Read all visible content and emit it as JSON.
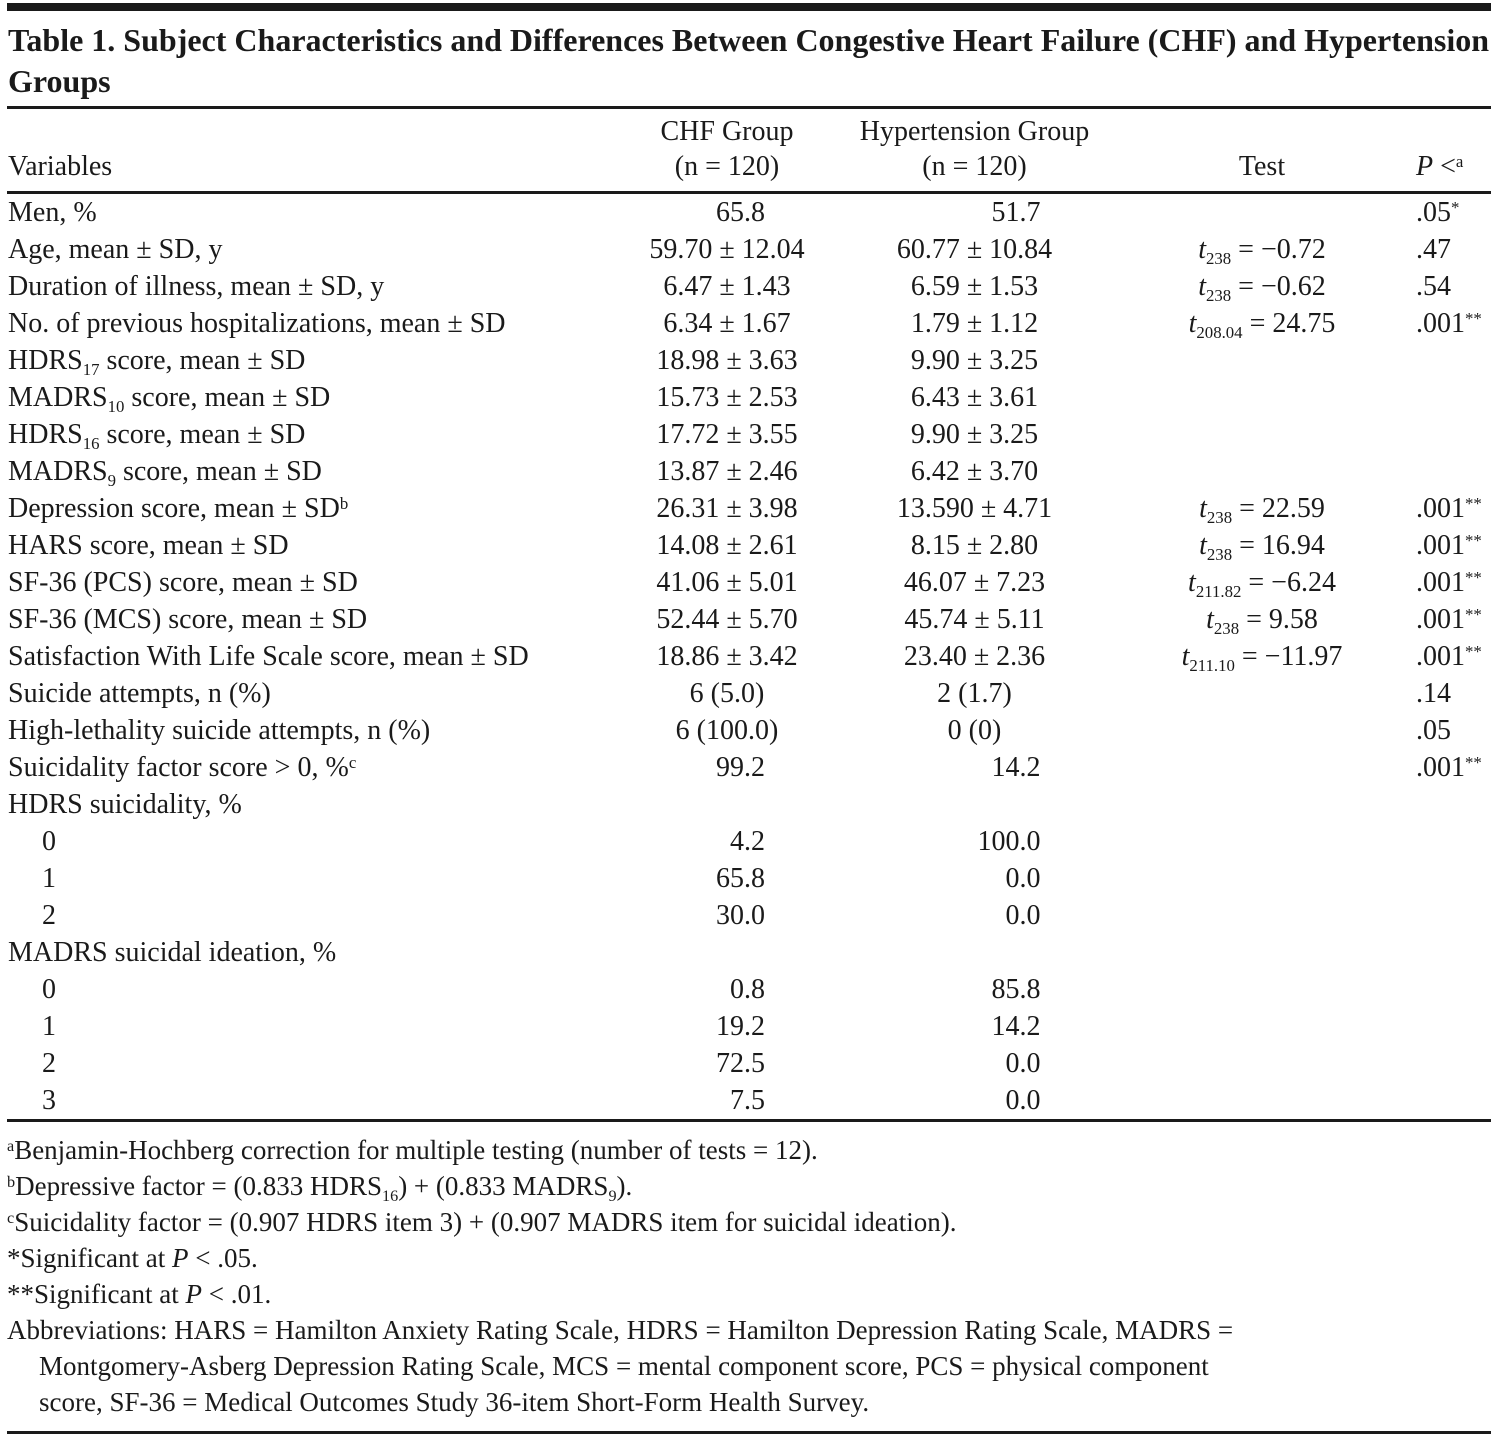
{
  "title": "Table 1. Subject Characteristics and Differences Between Congestive Heart Failure (CHF) and Hypertension Groups",
  "header": {
    "variables": "Variables",
    "chf_line1": "CHF Group",
    "chf_line2": "(n = 120)",
    "hyp_line1": "Hypertension Group",
    "hyp_line2": "(n = 120)",
    "test": "Test",
    "p_italic": "P",
    "p_lt": " <",
    "p_sup": "a"
  },
  "rows": [
    {
      "label": [
        {
          "t": "text",
          "v": "Men, %"
        }
      ],
      "indent": false,
      "chf": "65.8",
      "hyp": "51.7",
      "test": [],
      "p": [
        {
          "t": "text",
          "v": ".05"
        },
        {
          "t": "sup",
          "v": "*"
        }
      ]
    },
    {
      "label": [
        {
          "t": "text",
          "v": "Age, mean ± SD, y"
        }
      ],
      "indent": false,
      "chf": "59.70 ± 12.04",
      "hyp": "60.77 ± 10.84",
      "test": [
        {
          "t": "i",
          "v": "t"
        },
        {
          "t": "sub",
          "v": "238"
        },
        {
          "t": "text",
          "v": " = −0.72"
        }
      ],
      "p": [
        {
          "t": "text",
          "v": ".47"
        }
      ]
    },
    {
      "label": [
        {
          "t": "text",
          "v": "Duration of illness, mean ± SD, y"
        }
      ],
      "indent": false,
      "chf": "6.47 ± 1.43",
      "hyp": "6.59 ± 1.53",
      "test": [
        {
          "t": "i",
          "v": "t"
        },
        {
          "t": "sub",
          "v": "238"
        },
        {
          "t": "text",
          "v": " = −0.62"
        }
      ],
      "p": [
        {
          "t": "text",
          "v": ".54"
        }
      ]
    },
    {
      "label": [
        {
          "t": "text",
          "v": "No. of previous hospitalizations, mean ± SD"
        }
      ],
      "indent": false,
      "chf": "6.34 ± 1.67",
      "hyp": "1.79 ± 1.12",
      "test": [
        {
          "t": "i",
          "v": "t"
        },
        {
          "t": "sub",
          "v": "208.04"
        },
        {
          "t": "text",
          "v": " = 24.75"
        }
      ],
      "p": [
        {
          "t": "text",
          "v": ".001"
        },
        {
          "t": "sup",
          "v": "**"
        }
      ]
    },
    {
      "label": [
        {
          "t": "text",
          "v": "HDRS"
        },
        {
          "t": "sub",
          "v": "17"
        },
        {
          "t": "text",
          "v": " score, mean ± SD"
        }
      ],
      "indent": false,
      "chf": "18.98 ± 3.63",
      "hyp": "9.90 ± 3.25",
      "test": [],
      "p": []
    },
    {
      "label": [
        {
          "t": "text",
          "v": "MADRS"
        },
        {
          "t": "sub",
          "v": "10"
        },
        {
          "t": "text",
          "v": " score, mean ± SD"
        }
      ],
      "indent": false,
      "chf": "15.73 ± 2.53",
      "hyp": "6.43 ± 3.61",
      "test": [],
      "p": []
    },
    {
      "label": [
        {
          "t": "text",
          "v": "HDRS"
        },
        {
          "t": "sub",
          "v": "16"
        },
        {
          "t": "text",
          "v": " score, mean ± SD"
        }
      ],
      "indent": false,
      "chf": "17.72 ± 3.55",
      "hyp": "9.90 ± 3.25",
      "test": [],
      "p": []
    },
    {
      "label": [
        {
          "t": "text",
          "v": "MADRS"
        },
        {
          "t": "sub",
          "v": "9"
        },
        {
          "t": "text",
          "v": " score, mean ± SD"
        }
      ],
      "indent": false,
      "chf": "13.87 ± 2.46",
      "hyp": "6.42 ± 3.70",
      "test": [],
      "p": []
    },
    {
      "label": [
        {
          "t": "text",
          "v": "Depression score, mean ± SD"
        },
        {
          "t": "sup",
          "v": "b"
        }
      ],
      "indent": false,
      "chf": "26.31 ± 3.98",
      "hyp": "13.590 ± 4.71",
      "test": [
        {
          "t": "i",
          "v": "t"
        },
        {
          "t": "sub",
          "v": "238"
        },
        {
          "t": "text",
          "v": " = 22.59"
        }
      ],
      "p": [
        {
          "t": "text",
          "v": ".001"
        },
        {
          "t": "sup",
          "v": "**"
        }
      ]
    },
    {
      "label": [
        {
          "t": "text",
          "v": "HARS score, mean ± SD"
        }
      ],
      "indent": false,
      "chf": "14.08 ± 2.61",
      "hyp": "8.15 ± 2.80",
      "test": [
        {
          "t": "i",
          "v": "t"
        },
        {
          "t": "sub",
          "v": "238"
        },
        {
          "t": "text",
          "v": " = 16.94"
        }
      ],
      "p": [
        {
          "t": "text",
          "v": ".001"
        },
        {
          "t": "sup",
          "v": "**"
        }
      ]
    },
    {
      "label": [
        {
          "t": "text",
          "v": "SF-36 (PCS) score, mean ± SD"
        }
      ],
      "indent": false,
      "chf": "41.06 ± 5.01",
      "hyp": "46.07 ± 7.23",
      "test": [
        {
          "t": "i",
          "v": "t"
        },
        {
          "t": "sub",
          "v": "211.82"
        },
        {
          "t": "text",
          "v": " = −6.24"
        }
      ],
      "p": [
        {
          "t": "text",
          "v": ".001"
        },
        {
          "t": "sup",
          "v": "**"
        }
      ]
    },
    {
      "label": [
        {
          "t": "text",
          "v": "SF-36 (MCS) score, mean ± SD"
        }
      ],
      "indent": false,
      "chf": "52.44 ± 5.70",
      "hyp": "45.74 ± 5.11",
      "test": [
        {
          "t": "i",
          "v": "t"
        },
        {
          "t": "sub",
          "v": "238"
        },
        {
          "t": "text",
          "v": " = 9.58"
        }
      ],
      "p": [
        {
          "t": "text",
          "v": ".001"
        },
        {
          "t": "sup",
          "v": "**"
        }
      ]
    },
    {
      "label": [
        {
          "t": "text",
          "v": "Satisfaction With Life Scale score, mean ± SD"
        }
      ],
      "indent": false,
      "chf": "18.86 ± 3.42",
      "hyp": "23.40 ± 2.36",
      "test": [
        {
          "t": "i",
          "v": "t"
        },
        {
          "t": "sub",
          "v": "211.10"
        },
        {
          "t": "text",
          "v": " = −11.97"
        }
      ],
      "p": [
        {
          "t": "text",
          "v": ".001"
        },
        {
          "t": "sup",
          "v": "**"
        }
      ]
    },
    {
      "label": [
        {
          "t": "text",
          "v": "Suicide attempts, n (%)"
        }
      ],
      "indent": false,
      "chf": "6 (5.0)",
      "hyp": "2 (1.7)",
      "test": [],
      "p": [
        {
          "t": "text",
          "v": ".14"
        }
      ]
    },
    {
      "label": [
        {
          "t": "text",
          "v": "High-lethality suicide attempts, n (%)"
        }
      ],
      "indent": false,
      "chf": "6 (100.0)",
      "hyp": "0 (0)",
      "test": [],
      "p": [
        {
          "t": "text",
          "v": ".05"
        }
      ]
    },
    {
      "label": [
        {
          "t": "text",
          "v": "Suicidality factor score > 0, %"
        },
        {
          "t": "sup",
          "v": "c"
        }
      ],
      "indent": false,
      "chf": "99.2",
      "hyp": "14.2",
      "test": [],
      "p": [
        {
          "t": "text",
          "v": ".001"
        },
        {
          "t": "sup",
          "v": "**"
        }
      ]
    },
    {
      "label": [
        {
          "t": "text",
          "v": "HDRS suicidality, %"
        }
      ],
      "indent": false,
      "chf": "",
      "hyp": "",
      "test": [],
      "p": []
    },
    {
      "label": [
        {
          "t": "text",
          "v": "0"
        }
      ],
      "indent": true,
      "chf": "4.2",
      "hyp": "100.0",
      "test": [],
      "p": []
    },
    {
      "label": [
        {
          "t": "text",
          "v": "1"
        }
      ],
      "indent": true,
      "chf": "65.8",
      "hyp": "0.0",
      "test": [],
      "p": []
    },
    {
      "label": [
        {
          "t": "text",
          "v": "2"
        }
      ],
      "indent": true,
      "chf": "30.0",
      "hyp": "0.0",
      "test": [],
      "p": []
    },
    {
      "label": [
        {
          "t": "text",
          "v": "MADRS suicidal ideation, %"
        }
      ],
      "indent": false,
      "chf": "",
      "hyp": "",
      "test": [],
      "p": []
    },
    {
      "label": [
        {
          "t": "text",
          "v": "0"
        }
      ],
      "indent": true,
      "chf": "0.8",
      "hyp": "85.8",
      "test": [],
      "p": []
    },
    {
      "label": [
        {
          "t": "text",
          "v": "1"
        }
      ],
      "indent": true,
      "chf": "19.2",
      "hyp": "14.2",
      "test": [],
      "p": []
    },
    {
      "label": [
        {
          "t": "text",
          "v": "2"
        }
      ],
      "indent": true,
      "chf": "72.5",
      "hyp": "0.0",
      "test": [],
      "p": []
    },
    {
      "label": [
        {
          "t": "text",
          "v": "3"
        }
      ],
      "indent": true,
      "chf": "7.5",
      "hyp": "0.0",
      "test": [],
      "p": []
    }
  ],
  "footnotes": [
    [
      {
        "t": "sup",
        "v": "a"
      },
      {
        "t": "text",
        "v": "Benjamin-Hochberg correction for multiple testing (number of tests = 12)."
      }
    ],
    [
      {
        "t": "sup",
        "v": "b"
      },
      {
        "t": "text",
        "v": "Depressive factor = (0.833 HDRS"
      },
      {
        "t": "sub",
        "v": "16"
      },
      {
        "t": "text",
        "v": ") + (0.833 MADRS"
      },
      {
        "t": "sub",
        "v": "9"
      },
      {
        "t": "text",
        "v": ")."
      }
    ],
    [
      {
        "t": "sup",
        "v": "c"
      },
      {
        "t": "text",
        "v": "Suicidality factor = (0.907 HDRS item 3) + (0.907 MADRS item for suicidal ideation)."
      }
    ],
    [
      {
        "t": "text",
        "v": "*Significant at "
      },
      {
        "t": "i",
        "v": "P"
      },
      {
        "t": "text",
        "v": " < .05."
      }
    ],
    [
      {
        "t": "text",
        "v": "**Significant at "
      },
      {
        "t": "i",
        "v": "P"
      },
      {
        "t": "text",
        "v": " < .01."
      }
    ],
    [
      {
        "t": "text",
        "v": "Abbreviations: HARS = Hamilton Anxiety Rating Scale, HDRS = Hamilton Depression Rating Scale, MADRS = Montgomery-Asberg Depression Rating Scale, MCS = mental component score, PCS = physical component score, SF-36 = Medical Outcomes Study 36-item Short-Form Health Survey."
      }
    ]
  ],
  "colors": {
    "text": "#1a1a1a",
    "rule": "#1a1a1a",
    "background": "#ffffff"
  }
}
